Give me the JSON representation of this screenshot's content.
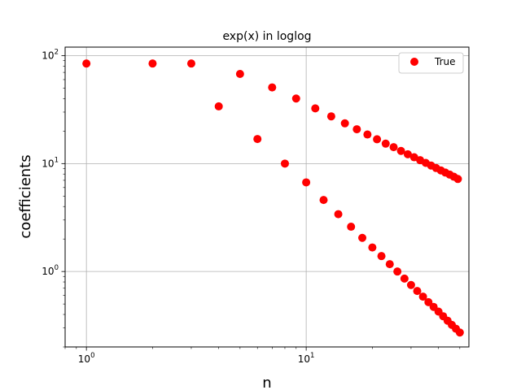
{
  "chart_data": {
    "type": "scatter",
    "title": "exp(x) in loglog",
    "xlabel": "n",
    "ylabel": "coefficients",
    "xscale": "log",
    "yscale": "log",
    "xlim": [
      0.8,
      55
    ],
    "ylim": [
      0.2,
      120
    ],
    "grid": true,
    "legend_position": "top-right",
    "x_ticks": [
      {
        "base": "10",
        "exp": "0",
        "value": 1
      },
      {
        "base": "10",
        "exp": "1",
        "value": 10
      }
    ],
    "y_ticks": [
      {
        "base": "10",
        "exp": "0",
        "value": 1
      },
      {
        "base": "10",
        "exp": "1",
        "value": 10
      },
      {
        "base": "10",
        "exp": "2",
        "value": 100
      }
    ],
    "series": [
      {
        "name": "True",
        "color": "#ff0000",
        "marker": "circle",
        "x": [
          1,
          2,
          3,
          4,
          5,
          6,
          7,
          8,
          9,
          10,
          11,
          12,
          13,
          14,
          15,
          16,
          17,
          18,
          19,
          20,
          21,
          22,
          23,
          24,
          25,
          26,
          27,
          28,
          29,
          30,
          31,
          32,
          33,
          34,
          35,
          36,
          37,
          38,
          39,
          40,
          41,
          42,
          43,
          44,
          45,
          46,
          47,
          48,
          49,
          50
        ],
        "y": [
          84.6,
          84.6,
          84.6,
          33.9,
          67.7,
          16.9,
          50.8,
          10.0,
          40.1,
          6.7,
          32.5,
          4.6,
          27.4,
          3.4,
          23.6,
          2.6,
          20.8,
          2.05,
          18.6,
          1.67,
          16.8,
          1.39,
          15.3,
          1.17,
          14.2,
          1.0,
          13.1,
          0.86,
          12.2,
          0.75,
          11.45,
          0.66,
          10.75,
          0.585,
          10.15,
          0.52,
          9.6,
          0.47,
          9.1,
          0.425,
          8.65,
          0.385,
          8.25,
          0.35,
          7.9,
          0.32,
          7.55,
          0.295,
          7.2,
          0.272
        ]
      }
    ]
  }
}
